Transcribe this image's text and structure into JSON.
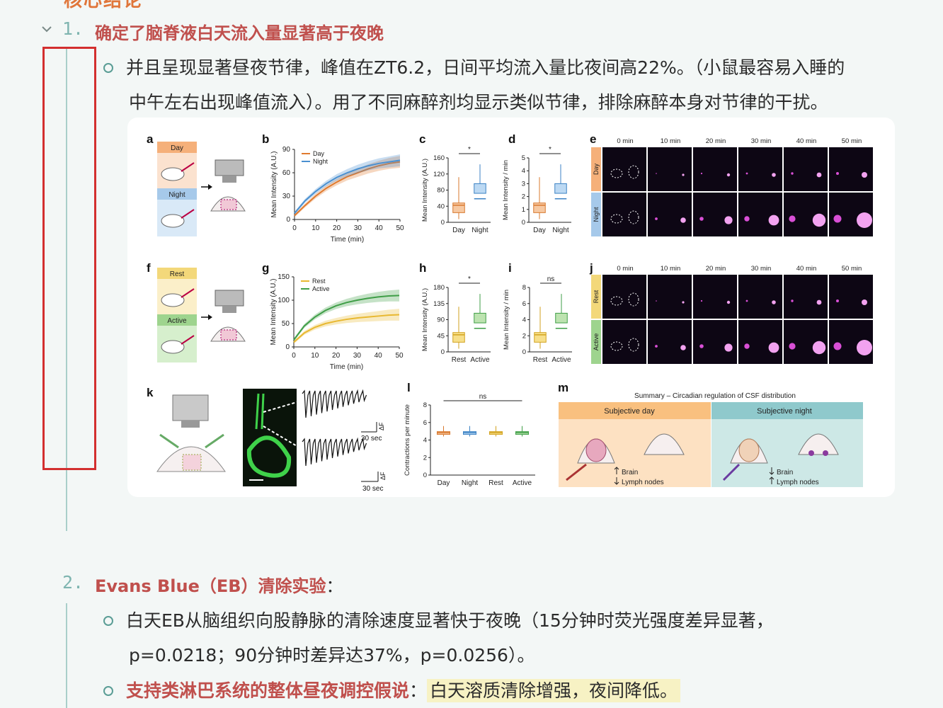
{
  "top_heading": "核心结论",
  "section1": {
    "number": "1.",
    "title": "确定了脑脊液白天流入量显著高于夜晚",
    "bullet_line1": "并且呈现显著昼夜节律，峰值在ZT6.2，日间平均流入量比夜间高22%。（小鼠最容易入睡的",
    "bullet_line2": "中午左右出现峰值流入）。用了不同麻醉剂均显示类似节律，排除麻醉本身对节律的干扰。"
  },
  "section2": {
    "number": "2.",
    "title": "Evans Blue（EB）清除实验",
    "colon": "：",
    "bullet1_line1": "白天EB从脑组织向股静脉的清除速度显著快于夜晚（15分钟时荧光强度差异显著，",
    "bullet1_line2": "p=0.0218；90分钟时差异达37%，p=0.0256）。",
    "bullet2_bold": "支持类淋巴系统的整体昼夜调控假说",
    "bullet2_colon": "：",
    "bullet2_highlight": "白天溶质清除增强，夜间降低。"
  },
  "figure": {
    "panels": {
      "a": "a",
      "b": "b",
      "c": "c",
      "d": "d",
      "e": "e",
      "f": "f",
      "g": "g",
      "h": "h",
      "i": "i",
      "j": "j",
      "k": "k",
      "l": "l",
      "m": "m"
    },
    "a": {
      "day": "Day",
      "night": "Night"
    },
    "f": {
      "rest": "Rest",
      "active": "Active"
    },
    "b": {
      "chart_data": {
        "type": "line",
        "x": [
          0,
          5,
          10,
          15,
          20,
          25,
          30,
          35,
          40,
          45,
          50
        ],
        "series": [
          {
            "name": "Day",
            "values": [
              5,
              18,
              30,
              40,
              48,
              55,
              60,
              65,
              69,
              72,
              74
            ],
            "color": "#e07a2e"
          },
          {
            "name": "Night",
            "values": [
              8,
              24,
              36,
              46,
              54,
              60,
              65,
              69,
              72,
              74,
              76
            ],
            "color": "#4a90d0"
          }
        ],
        "xlabel": "Time (min)",
        "ylabel": "Mean Intensity (A.U.)",
        "ylim": [
          0,
          90
        ],
        "yticks": [
          "0",
          "30",
          "60",
          "90"
        ],
        "xticks": [
          "0",
          "10",
          "20",
          "30",
          "40",
          "50"
        ]
      }
    },
    "g": {
      "chart_data": {
        "type": "line",
        "x": [
          0,
          5,
          10,
          15,
          20,
          25,
          30,
          35,
          40,
          45,
          50
        ],
        "series": [
          {
            "name": "Rest",
            "values": [
              10,
              30,
              42,
              50,
              55,
              59,
              62,
              64,
              66,
              68,
              69
            ],
            "color": "#e8b830"
          },
          {
            "name": "Active",
            "values": [
              15,
              45,
              64,
              78,
              88,
              95,
              100,
              104,
              107,
              109,
              110
            ],
            "color": "#3f9e47"
          }
        ],
        "xlabel": "Time (min)",
        "ylabel": "Mean Intensity (A.U.)",
        "ylim": [
          0,
          150
        ],
        "yticks": [
          "0",
          "50",
          "100",
          "150"
        ],
        "xticks": [
          "0",
          "10",
          "20",
          "30",
          "40",
          "50"
        ]
      }
    },
    "c": {
      "ylabel": "Mean Intensity (A.U.)",
      "yticks": [
        "0",
        "40",
        "80",
        "120",
        "160"
      ],
      "categories": [
        "Day",
        "Night"
      ],
      "sig": "*"
    },
    "d": {
      "ylabel": "Mean Intensity / min",
      "yticks": [
        "0",
        "1",
        "2",
        "3",
        "4",
        "5"
      ],
      "categories": [
        "Day",
        "Night"
      ],
      "sig": "*"
    },
    "h": {
      "ylabel": "Mean Intensity (A.U.)",
      "yticks": [
        "0",
        "45",
        "90",
        "135",
        "180"
      ],
      "categories": [
        "Rest",
        "Active"
      ],
      "sig": "*"
    },
    "i": {
      "ylabel": "Mean Intensity / min",
      "yticks": [
        "0",
        "2",
        "4",
        "6",
        "8"
      ],
      "categories": [
        "Rest",
        "Active"
      ],
      "sig": "ns"
    },
    "l": {
      "ylabel": "Contractions per minute",
      "yticks": [
        "0",
        "2",
        "4",
        "6",
        "8"
      ],
      "categories": [
        "Day",
        "Night",
        "Rest",
        "Active"
      ],
      "sig": "ns"
    },
    "e": {
      "times": [
        "0 min",
        "10 min",
        "20 min",
        "30 min",
        "40 min",
        "50 min"
      ],
      "rows": [
        "Day",
        "Night"
      ]
    },
    "j": {
      "times": [
        "0 min",
        "10 min",
        "20 min",
        "30 min",
        "40 min",
        "50 min"
      ],
      "rows": [
        "Rest",
        "Active"
      ]
    },
    "k": {
      "scale1": "30 sec",
      "scale2": "30 sec",
      "df": "ΔF"
    },
    "m": {
      "title": "Summary – Circadian regulation of CSF distribution",
      "day": "Subjective day",
      "night": "Subjective night",
      "brain": "Brain",
      "lymph": "Lymph nodes"
    }
  }
}
